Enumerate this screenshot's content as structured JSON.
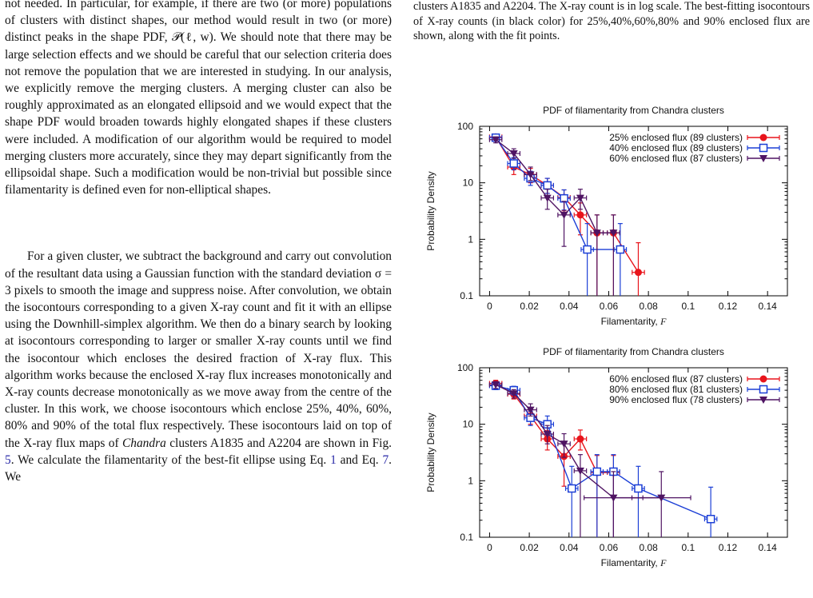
{
  "left_column": {
    "paragraph1": "not needed. In particular, for example, if there are two (or more) populations of clusters with distinct shapes, our method would result in two (or more) distinct peaks in the shape PDF, 𝒫(ℓ, w). We should note that there may be large selection effects and we should be careful that our selection criteria does not remove the population that we are interested in studying. In our analysis, we explicitly remove the merging clusters. A merging cluster can also be roughly approximated as an elongated ellipsoid and we would expect that the shape PDF would broaden towards highly elongated shapes if these clusters were included. A modification of our algorithm would be required to model merging clusters more accurately, since they may depart significantly from the ellipsoidal shape. Such a modification would be non-trivial but possible since filamentarity is defined even for non-elliptical shapes.",
    "paragraph2_a": "For a given cluster, we subtract the background and carry out convolution of the resultant data using a Gaussian function with the standard deviation σ = 3 pixels to smooth the image and suppress noise. After convolution, we obtain the isocontours corresponding to a given X-ray count and fit it with an ellipse using the Downhill-simplex algorithm. We then do a binary search by looking at isocontours corresponding to larger or smaller X-ray counts until we find the isocontour which encloses the desired fraction of X-ray flux. This algorithm works because the enclosed X-ray flux increases monotonically and X-ray counts decrease monotonically as we move away from the centre of the cluster. In this work, we choose isocontours which enclose 25%, 40%, 60%, 80% and 90% of the total flux respectively. These isocontours laid on top of the X-ray flux maps of",
    "paragraph2_italic": "Chandra",
    "paragraph2_b": "clusters A1835 and A2204 are shown in Fig.",
    "paragraph2_figref": "5",
    "paragraph2_c": ". We calculate the",
    "paragraph2_d": "filamentarity of the best-fit ellipse using Eq.",
    "paragraph2_eqref1": "1",
    "paragraph2_e": "and Eq.",
    "paragraph2_eqref2": "7",
    "paragraph2_f": ". We"
  },
  "caption": {
    "text": "clusters A1835 and A2204. The X-ray count is in log scale. The best-fitting isocontours of X-ray counts (in black color) for 25%,40%,60%,80% and 90% enclosed flux are shown, along with the fit points."
  },
  "colors": {
    "red": "#e8141b",
    "blue": "#1c3fd6",
    "purple": "#4f1463",
    "link": "#2a2aa8"
  },
  "chart_data": [
    {
      "type": "line",
      "title": "PDF of filamentarity from Chandra clusters",
      "xlabel": "Filamentarity,",
      "xlabel_symbol": "F",
      "ylabel": "Probability Density",
      "xlim": [
        -0.005,
        0.15
      ],
      "ylim": [
        0.1,
        100
      ],
      "yscale": "log",
      "xticks": [
        "0",
        "0.02",
        "0.04",
        "0.06",
        "0.08",
        "0.1",
        "0.12",
        "0.14"
      ],
      "xtick_values": [
        0,
        0.02,
        0.04,
        0.06,
        0.08,
        0.1,
        0.12,
        0.14
      ],
      "yticks": [
        "0.1",
        "1",
        "10",
        "100"
      ],
      "ytick_values": [
        0.1,
        1,
        10,
        100
      ],
      "legend_position": "top-right",
      "series": [
        {
          "name": "25% enclosed flux (89 clusters)",
          "color": "#e8141b",
          "marker": "circle",
          "x": [
            0.0031,
            0.0122,
            0.0206,
            0.0291,
            0.0375,
            0.0457,
            0.0541,
            0.0624,
            0.0749
          ],
          "y": [
            65,
            19,
            14,
            9,
            5.5,
            2.7,
            1.3,
            1.3,
            0.26
          ],
          "xerr": [
            0.0031,
            0.0031,
            0.0031,
            0.0031,
            0.0031,
            0.0031,
            0.0031,
            0.0031,
            0.0031
          ],
          "ylo": [
            57,
            14,
            10,
            6.5,
            3.2,
            1.2,
            0.1,
            0.1,
            0.1
          ],
          "yhi": [
            72,
            24,
            18,
            12,
            7.5,
            4.4,
            2.7,
            2.7,
            0.87
          ]
        },
        {
          "name": "40% enclosed flux (89 clusters)",
          "color": "#1c3fd6",
          "marker": "square",
          "x": [
            0.0031,
            0.0122,
            0.0206,
            0.0291,
            0.0375,
            0.0492,
            0.0658
          ],
          "y": [
            63,
            22,
            12,
            9,
            5.3,
            0.66,
            0.66
          ],
          "xerr": [
            0.0031,
            0.0031,
            0.0031,
            0.0031,
            0.0031,
            0.0031,
            0.0031
          ],
          "ylo": [
            56,
            17,
            9,
            6.5,
            3.3,
            0.1,
            0.1
          ],
          "yhi": [
            71,
            28,
            16,
            12,
            7.5,
            1.9,
            1.9
          ]
        },
        {
          "name": "60% enclosed flux (87 clusters)",
          "color": "#4f1463",
          "marker": "triangle-down",
          "x": [
            0.0031,
            0.0122,
            0.0206,
            0.0291,
            0.0375,
            0.0457,
            0.0541,
            0.0624
          ],
          "y": [
            58,
            33,
            14,
            5.4,
            2.7,
            5.4,
            1.3,
            1.3
          ],
          "xerr": [
            0.0031,
            0.0031,
            0.0031,
            0.0031,
            0.0031,
            0.0031,
            0.0031,
            0.0031
          ],
          "ylo": [
            51,
            27,
            11,
            3.4,
            0.75,
            3.4,
            0.1,
            0.1
          ],
          "yhi": [
            65,
            40,
            19,
            7.7,
            4.7,
            7.7,
            2.7,
            2.7
          ]
        }
      ]
    },
    {
      "type": "line",
      "title": "PDF of filamentarity from Chandra clusters",
      "xlabel": "Filamentarity,",
      "xlabel_symbol": "F",
      "ylabel": "Probability Density",
      "xlim": [
        -0.005,
        0.15
      ],
      "ylim": [
        0.1,
        100
      ],
      "yscale": "log",
      "xticks": [
        "0",
        "0.02",
        "0.04",
        "0.06",
        "0.08",
        "0.1",
        "0.12",
        "0.14"
      ],
      "xtick_values": [
        0,
        0.02,
        0.04,
        0.06,
        0.08,
        0.1,
        0.12,
        0.14
      ],
      "yticks": [
        "0.1",
        "1",
        "10",
        "100"
      ],
      "ytick_values": [
        0.1,
        1,
        10,
        100
      ],
      "legend_position": "top-right",
      "series": [
        {
          "name": "60% enclosed flux (87 clusters)",
          "color": "#e8141b",
          "marker": "circle",
          "x": [
            0.0031,
            0.0122,
            0.0206,
            0.0291,
            0.0375,
            0.0457,
            0.0541,
            0.0624
          ],
          "y": [
            53,
            34,
            14,
            5.5,
            2.7,
            5.5,
            1.4,
            1.4
          ],
          "xerr": [
            0.0031,
            0.0031,
            0.0031,
            0.0031,
            0.0031,
            0.0031,
            0.0031,
            0.0031
          ],
          "ylo": [
            46,
            28,
            10,
            3.5,
            0.8,
            3.5,
            0.1,
            0.1
          ],
          "yhi": [
            60,
            40,
            18,
            7.7,
            4.7,
            7.9,
            2.8,
            2.8
          ]
        },
        {
          "name": "80% enclosed flux (81 clusters)",
          "color": "#1c3fd6",
          "marker": "square",
          "x": [
            0.0031,
            0.0122,
            0.0206,
            0.0291,
            0.0414,
            0.0541,
            0.0624,
            0.0749,
            0.1114
          ],
          "y": [
            48,
            40,
            13,
            10,
            0.73,
            1.45,
            1.45,
            0.73,
            0.21
          ],
          "xerr": [
            0.0031,
            0.0031,
            0.0031,
            0.0031,
            0.0031,
            0.0031,
            0.0031,
            0.0031,
            0.0031
          ],
          "ylo": [
            41,
            33,
            9.5,
            6.5,
            0.1,
            0.1,
            0.1,
            0.1,
            0.1
          ],
          "yhi": [
            55,
            47,
            17,
            14,
            1.8,
            2.9,
            2.9,
            1.8,
            0.77
          ]
        },
        {
          "name": "90% enclosed flux (78 clusters)",
          "color": "#4f1463",
          "marker": "triangle-down",
          "x": [
            0.0031,
            0.0122,
            0.0206,
            0.0291,
            0.0375,
            0.0457,
            0.0624,
            0.0865
          ],
          "y": [
            50,
            35,
            18,
            6.7,
            4.5,
            1.5,
            0.5,
            0.5
          ],
          "xerr": [
            0.0031,
            0.0031,
            0.0031,
            0.0031,
            0.0031,
            0.0031,
            0.0148,
            0.0148
          ],
          "ylo": [
            43,
            29,
            14,
            4.5,
            2.6,
            0.1,
            0.1,
            0.1
          ],
          "yhi": [
            57,
            41,
            23,
            9.5,
            6.8,
            2.9,
            1.45,
            1.45
          ]
        }
      ]
    }
  ]
}
